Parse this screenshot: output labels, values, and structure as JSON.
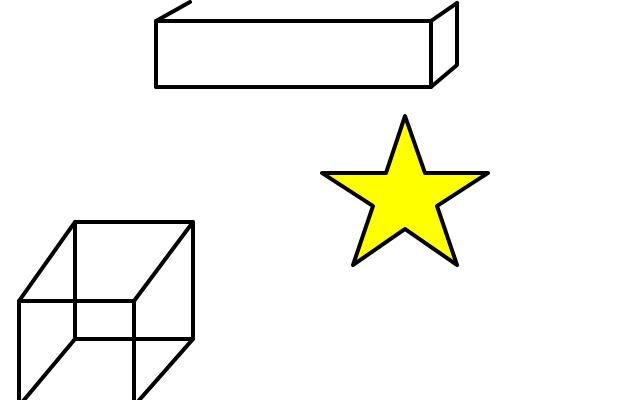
{
  "canvas": {
    "background_color": "#ffffff"
  },
  "shapes": [
    {
      "name": "rectangular-prism",
      "kind": "3d-box-outline",
      "stroke_color": "#000000"
    },
    {
      "name": "star",
      "kind": "five-point-star",
      "fill_color": "#ffff00",
      "stroke_color": "#000000"
    },
    {
      "name": "wireframe-cube",
      "kind": "3d-cube-outline",
      "stroke_color": "#000000"
    }
  ]
}
